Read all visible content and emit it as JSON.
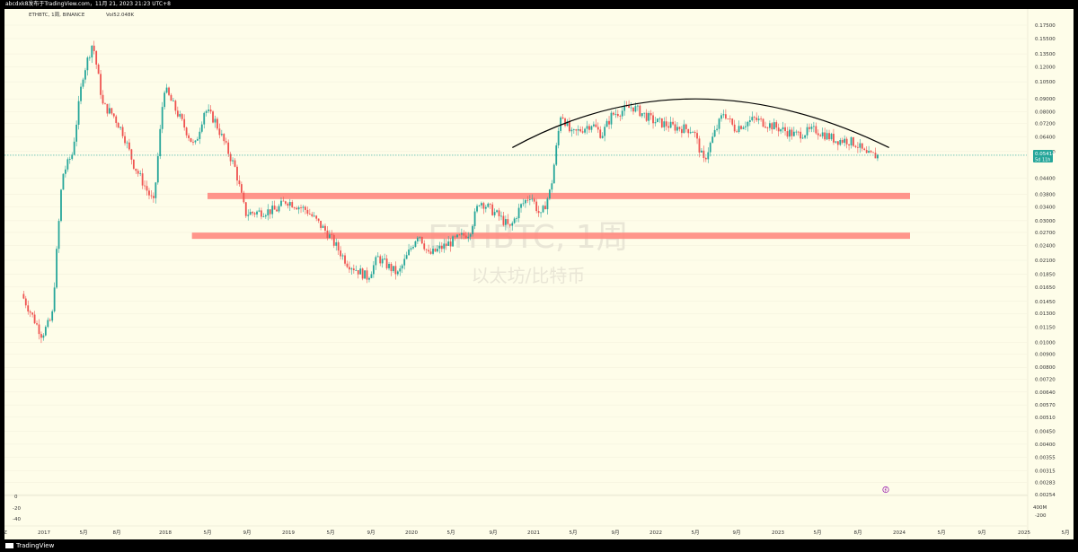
{
  "window": {
    "title_bar": "abcdxk8发布于TradingView.com，11月 21, 2023 21:23 UTC+8",
    "logo_text": "TradingView"
  },
  "chart_header": {
    "symbol_line": "ETHBTC, 1周, BINANCE",
    "volume_text": "Vol52.048K"
  },
  "watermark": {
    "symbol": "ETHBTC, 1周",
    "description": "以太坊/比特币"
  },
  "colors": {
    "background": "#fefde9",
    "up_candle": "#26a69a",
    "down_candle": "#ef5350",
    "zone": "#ff8a80",
    "price_tag": "#26a69a",
    "arc": "#000000"
  },
  "price_tag": {
    "price": "0.05414",
    "countdown": "5d 11h"
  },
  "oscillator": {
    "axis_labels": [
      "0",
      "-20",
      "-40"
    ],
    "right_labels": [
      "400M",
      "-200"
    ],
    "marker_icon": "lightning-icon"
  },
  "chart_data": {
    "type": "candlestick",
    "scale": "log",
    "ylim": [
      0.00254,
      0.196
    ],
    "x_axis_ticks": [
      "Z",
      "2017",
      "5月",
      "8月",
      "2018",
      "5月",
      "9月",
      "2019",
      "5月",
      "9月",
      "2020",
      "5月",
      "9月",
      "2021",
      "5月",
      "9月",
      "2022",
      "5月",
      "9月",
      "2023",
      "5月",
      "8月",
      "2024",
      "5月",
      "9月",
      "2025",
      "5月"
    ],
    "y_axis_ticks": [
      "0.17500",
      "0.15500",
      "0.13500",
      "0.12000",
      "0.10500",
      "0.09000",
      "0.08000",
      "0.07200",
      "0.06400",
      "0.05600",
      "0.04400",
      "0.03800",
      "0.03400",
      "0.03000",
      "0.02700",
      "0.02400",
      "0.02100",
      "0.01850",
      "0.01650",
      "0.01450",
      "0.01300",
      "0.01150",
      "0.01000",
      "0.00900",
      "0.00800",
      "0.00720",
      "0.00640",
      "0.00570",
      "0.00510",
      "0.00450",
      "0.00400",
      "0.00355",
      "0.00315",
      "0.00283",
      "0.00254"
    ],
    "y_axis_values": [
      0.175,
      0.155,
      0.135,
      0.12,
      0.105,
      0.09,
      0.08,
      0.072,
      0.064,
      0.056,
      0.044,
      0.038,
      0.034,
      0.03,
      0.027,
      0.024,
      0.021,
      0.0185,
      0.0165,
      0.0145,
      0.013,
      0.0115,
      0.01,
      0.009,
      0.008,
      0.0072,
      0.0064,
      0.0057,
      0.0051,
      0.0045,
      0.004,
      0.00355,
      0.00315,
      0.00283,
      0.00254
    ],
    "price_anchors": [
      [
        "2016-11",
        0.0155
      ],
      [
        "2017-01",
        0.0107
      ],
      [
        "2017-02",
        0.0125
      ],
      [
        "2017-03",
        0.045
      ],
      [
        "2017-04",
        0.055
      ],
      [
        "2017-05",
        0.11
      ],
      [
        "2017-06",
        0.15
      ],
      [
        "2017-07",
        0.085
      ],
      [
        "2017-08",
        0.078
      ],
      [
        "2017-09",
        0.066
      ],
      [
        "2017-10",
        0.05
      ],
      [
        "2017-12",
        0.035
      ],
      [
        "2018-01",
        0.1
      ],
      [
        "2018-03",
        0.07
      ],
      [
        "2018-04",
        0.058
      ],
      [
        "2018-05",
        0.082
      ],
      [
        "2018-06",
        0.074
      ],
      [
        "2018-08",
        0.048
      ],
      [
        "2018-09",
        0.032
      ],
      [
        "2018-12",
        0.033
      ],
      [
        "2019-01",
        0.036
      ],
      [
        "2019-03",
        0.033
      ],
      [
        "2019-05",
        0.027
      ],
      [
        "2019-07",
        0.0205
      ],
      [
        "2019-09",
        0.018
      ],
      [
        "2019-10",
        0.0215
      ],
      [
        "2019-12",
        0.0185
      ],
      [
        "2020-02",
        0.027
      ],
      [
        "2020-03",
        0.022
      ],
      [
        "2020-05",
        0.0245
      ],
      [
        "2020-07",
        0.027
      ],
      [
        "2020-08",
        0.036
      ],
      [
        "2020-10",
        0.031
      ],
      [
        "2020-11",
        0.028
      ],
      [
        "2020-12",
        0.034
      ],
      [
        "2021-01",
        0.038
      ],
      [
        "2021-02",
        0.031
      ],
      [
        "2021-03",
        0.04
      ],
      [
        "2021-04",
        0.08
      ],
      [
        "2021-05",
        0.065
      ],
      [
        "2021-07",
        0.072
      ],
      [
        "2021-08",
        0.065
      ],
      [
        "2021-09",
        0.078
      ],
      [
        "2021-11",
        0.084
      ],
      [
        "2022-01",
        0.074
      ],
      [
        "2022-03",
        0.07
      ],
      [
        "2022-05",
        0.068
      ],
      [
        "2022-06",
        0.051
      ],
      [
        "2022-07",
        0.065
      ],
      [
        "2022-08",
        0.08
      ],
      [
        "2022-09",
        0.069
      ],
      [
        "2022-11",
        0.075
      ],
      [
        "2023-01",
        0.07
      ],
      [
        "2023-03",
        0.065
      ],
      [
        "2023-05",
        0.068
      ],
      [
        "2023-07",
        0.062
      ],
      [
        "2023-08",
        0.062
      ],
      [
        "2023-09",
        0.06
      ],
      [
        "2023-10",
        0.054
      ],
      [
        "2023-11",
        0.054
      ]
    ],
    "support_zones": [
      {
        "price": 0.0375,
        "from": "2018-04",
        "to": "2024-01"
      },
      {
        "price": 0.0262,
        "from": "2018-03",
        "to": "2024-01"
      }
    ],
    "arc": {
      "from": [
        "2020-11",
        0.058
      ],
      "peak": [
        "2022-05",
        0.09
      ],
      "to": [
        "2023-12",
        0.058
      ]
    }
  }
}
